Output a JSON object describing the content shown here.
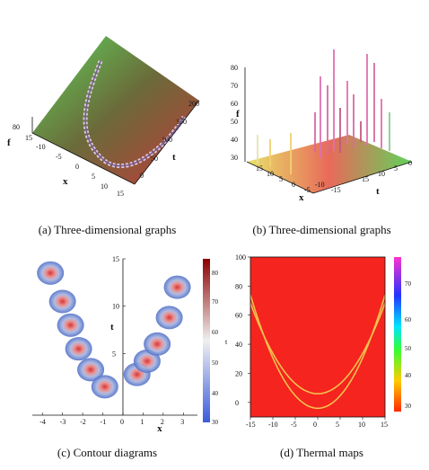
{
  "panels": [
    {
      "caption": "(a)  Three-dimensional graphs",
      "axes": {
        "f": "f",
        "t": "t",
        "x": "x"
      },
      "f_ticks": [
        "80",
        "15"
      ],
      "t_ticks": [
        "200",
        "150",
        "100",
        "50",
        "0"
      ],
      "x_ticks": [
        "-10",
        "-5",
        "0",
        "5",
        "10",
        "15"
      ]
    },
    {
      "caption": "(b)  Three-dimensional graphs",
      "axes": {
        "f": "f",
        "t": "t",
        "x": "x"
      },
      "f_ticks": [
        "80",
        "70",
        "60",
        "50",
        "40",
        "30"
      ],
      "t_ticks": [
        "0",
        "5",
        "10",
        "15"
      ],
      "x_ticks": [
        "15",
        "10",
        "5",
        "0",
        "-5",
        "-10",
        "-15"
      ]
    },
    {
      "caption": "(c)  Contour diagrams",
      "axes": {
        "t": "t",
        "x": "x"
      },
      "colorbar_ticks": [
        "80",
        "70",
        "60",
        "50",
        "40",
        "30"
      ],
      "colorbar_colors": {
        "top": "#8b0000",
        "mid": "#f0f0f0",
        "bottom": "#3b5bdb"
      },
      "chart_data": {
        "type": "heatmap",
        "xlabel": "x",
        "ylabel": "t",
        "x_ticks": [
          "-4",
          "-3",
          "-2",
          "-1",
          "0",
          "1",
          "2",
          "3"
        ],
        "y_ticks": [
          "15",
          "10",
          "5"
        ],
        "xlim": [
          -4.5,
          3.7
        ],
        "ylim": [
          -1.5,
          15
        ],
        "value_range": [
          30,
          85
        ],
        "peaks_x": [
          -3.6,
          -3.0,
          -2.6,
          -2.2,
          -1.6,
          -0.9,
          0.7,
          1.2,
          1.7,
          2.3,
          2.7
        ],
        "peaks_t": [
          13.5,
          10.5,
          8.0,
          5.5,
          3.3,
          1.5,
          2.8,
          4.2,
          6.0,
          8.8,
          12.0
        ]
      }
    },
    {
      "caption": "(d)  Thermal maps",
      "axes": {
        "t": "t",
        "x": "x"
      },
      "colorbar_ticks": [
        "70",
        "60",
        "50",
        "40",
        "30"
      ],
      "background_color": "#f5241e",
      "curve_color": "#f2c14e",
      "chart_data": {
        "type": "heatmap",
        "xlabel": "x",
        "ylabel": "t",
        "x_ticks": [
          "-15",
          "-10",
          "-5",
          "0",
          "5",
          "10",
          "15"
        ],
        "y_ticks": [
          "100",
          "80",
          "60",
          "40",
          "20",
          "0"
        ],
        "xlim": [
          -15,
          15
        ],
        "ylim": [
          -10,
          100
        ],
        "curves": [
          {
            "vertex_t": 6,
            "width": 8.5
          },
          {
            "vertex_t": -4,
            "width": 7.6
          }
        ]
      }
    }
  ]
}
